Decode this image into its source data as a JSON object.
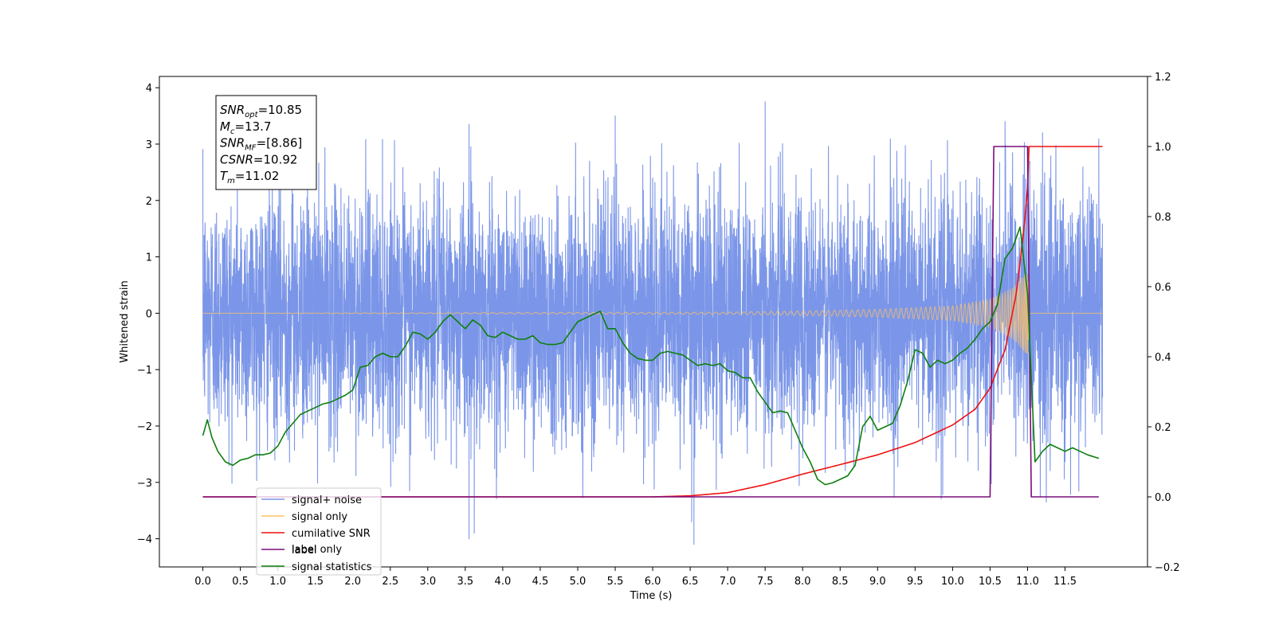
{
  "chart_data": {
    "type": "line",
    "title": "",
    "xlabel": "Time (s)",
    "ylabel": "Whitened strain",
    "y2label": "",
    "xlim": [
      -0.58,
      12.6
    ],
    "ylim": [
      -4.5,
      4.2
    ],
    "y2lim": [
      -0.2,
      1.2
    ],
    "xticks": [
      0.0,
      0.5,
      1.0,
      1.5,
      2.0,
      2.5,
      3.0,
      3.5,
      4.0,
      4.5,
      5.0,
      5.5,
      6.0,
      6.5,
      7.0,
      7.5,
      8.0,
      8.5,
      9.0,
      9.5,
      10.0,
      10.5,
      11.0,
      11.5
    ],
    "xtick_labels": [
      "0.0",
      "0.5",
      "1.0",
      "1.5",
      "2.0",
      "2.5",
      "3.0",
      "3.5",
      "4.0",
      "4.5",
      "5.0",
      "5.5",
      "6.0",
      "6.5",
      "7.0",
      "7.5",
      "8.0",
      "8.5",
      "9.0",
      "9.5",
      "10.0",
      "10.5",
      "11.0",
      "11.5"
    ],
    "yticks": [
      4,
      3,
      2,
      1,
      0,
      -1,
      -2,
      -3,
      -4
    ],
    "ytick_labels": [
      "4",
      "3",
      "2",
      "1",
      "0",
      "−1",
      "−2",
      "−3",
      "−4"
    ],
    "y2ticks": [
      1.2,
      1.0,
      0.8,
      0.6,
      0.4,
      0.2,
      0.0,
      -0.2
    ],
    "y2tick_labels": [
      "1.2",
      "1.0",
      "0.8",
      "0.6",
      "0.4",
      "0.2",
      "0.0",
      "−0.2"
    ],
    "grid": false,
    "legend_position": "lower-left",
    "annotation": {
      "lines": [
        {
          "base": "SNR",
          "sub": "opt",
          "rest": "=10.85"
        },
        {
          "base": "M",
          "sub": "c",
          "rest": "=13.7"
        },
        {
          "base": "SNR",
          "sub": "MF",
          "rest": "=[8.86]"
        },
        {
          "base": "CSNR",
          "sub": "",
          "rest": "=10.92"
        },
        {
          "base": "T",
          "sub": "m",
          "rest": "=11.02"
        }
      ]
    },
    "legend": [
      {
        "label": "signal+ noise",
        "color": "#7b96e8"
      },
      {
        "label": "signal only",
        "color": "#ffc266"
      },
      {
        "label": "cumilative SNR",
        "color": "#ee1111"
      },
      {
        "label": "label",
        "color": "#7a0d7a"
      },
      {
        "label": "signal statistics",
        "color": "#0e7f0e"
      }
    ],
    "legend_hidden_text": "label only",
    "series": [
      {
        "name": "signal+ noise",
        "axis": "left",
        "color": "#7b96e8",
        "description": "dense noise, std ~1.1, spikes to +3.8 and -4.1",
        "x_range": [
          0.0,
          12.0
        ],
        "notable_peaks": [
          [
            3.55,
            3.35
          ],
          [
            5.5,
            3.5
          ],
          [
            7.5,
            3.75
          ],
          [
            10.7,
            3.4
          ],
          [
            11.2,
            3.2
          ],
          [
            3.55,
            -4.0
          ],
          [
            3.62,
            -3.9
          ],
          [
            6.55,
            -4.1
          ],
          [
            6.52,
            -3.7
          ],
          [
            11.25,
            -3.35
          ]
        ]
      },
      {
        "name": "signal only",
        "axis": "left",
        "color": "#ffc266",
        "description": "chirp, amplitude grows toward merger at 11.02 s",
        "amplitude": [
          [
            0.0,
            0.0
          ],
          [
            7.0,
            0.02
          ],
          [
            8.0,
            0.04
          ],
          [
            9.0,
            0.07
          ],
          [
            10.0,
            0.13
          ],
          [
            10.5,
            0.25
          ],
          [
            10.8,
            0.45
          ],
          [
            11.0,
            0.75
          ],
          [
            11.03,
            0.0
          ],
          [
            12.0,
            0.0
          ]
        ]
      },
      {
        "name": "cumilative SNR",
        "axis": "right",
        "color": "#ee1111",
        "x": [
          0.0,
          6.0,
          6.5,
          7.0,
          7.5,
          8.0,
          8.5,
          9.0,
          9.5,
          10.0,
          10.3,
          10.5,
          10.7,
          10.85,
          10.95,
          11.0,
          11.02,
          12.0
        ],
        "y": [
          0.0,
          0.0,
          0.003,
          0.012,
          0.035,
          0.065,
          0.092,
          0.12,
          0.155,
          0.205,
          0.25,
          0.31,
          0.42,
          0.58,
          0.76,
          0.88,
          1.0,
          1.0
        ]
      },
      {
        "name": "label",
        "axis": "right",
        "color": "#7a0d7a",
        "x": [
          0.0,
          10.5,
          10.55,
          11.0,
          11.05,
          11.95
        ],
        "y": [
          0.0,
          0.0,
          1.0,
          1.0,
          0.0,
          0.0
        ]
      },
      {
        "name": "signal statistics",
        "axis": "right",
        "color": "#0e7f0e",
        "x": [
          0.0,
          0.06,
          0.12,
          0.2,
          0.3,
          0.4,
          0.5,
          0.6,
          0.7,
          0.8,
          0.9,
          1.0,
          1.1,
          1.2,
          1.3,
          1.4,
          1.5,
          1.6,
          1.7,
          1.8,
          1.9,
          2.0,
          2.1,
          2.2,
          2.3,
          2.4,
          2.5,
          2.6,
          2.7,
          2.8,
          2.9,
          3.0,
          3.1,
          3.2,
          3.3,
          3.4,
          3.5,
          3.6,
          3.7,
          3.8,
          3.9,
          4.0,
          4.1,
          4.2,
          4.3,
          4.4,
          4.5,
          4.6,
          4.7,
          4.8,
          4.9,
          5.0,
          5.1,
          5.2,
          5.3,
          5.4,
          5.5,
          5.6,
          5.7,
          5.8,
          5.9,
          6.0,
          6.1,
          6.2,
          6.3,
          6.4,
          6.5,
          6.6,
          6.7,
          6.8,
          6.9,
          7.0,
          7.1,
          7.2,
          7.3,
          7.4,
          7.5,
          7.6,
          7.7,
          7.8,
          7.9,
          8.0,
          8.1,
          8.2,
          8.3,
          8.4,
          8.5,
          8.6,
          8.7,
          8.8,
          8.9,
          9.0,
          9.1,
          9.2,
          9.3,
          9.4,
          9.5,
          9.6,
          9.7,
          9.8,
          9.9,
          10.0,
          10.1,
          10.2,
          10.3,
          10.4,
          10.5,
          10.6,
          10.7,
          10.8,
          10.9,
          11.0,
          11.1,
          11.2,
          11.3,
          11.4,
          11.5,
          11.6,
          11.7,
          11.8,
          11.95
        ],
        "y": [
          0.175,
          0.22,
          0.17,
          0.13,
          0.1,
          0.09,
          0.105,
          0.11,
          0.12,
          0.12,
          0.125,
          0.145,
          0.185,
          0.21,
          0.235,
          0.245,
          0.255,
          0.265,
          0.27,
          0.28,
          0.29,
          0.305,
          0.37,
          0.375,
          0.4,
          0.41,
          0.4,
          0.4,
          0.43,
          0.47,
          0.465,
          0.45,
          0.47,
          0.5,
          0.52,
          0.5,
          0.48,
          0.505,
          0.49,
          0.46,
          0.455,
          0.47,
          0.46,
          0.45,
          0.45,
          0.46,
          0.44,
          0.435,
          0.435,
          0.44,
          0.47,
          0.5,
          0.51,
          0.52,
          0.53,
          0.48,
          0.48,
          0.44,
          0.41,
          0.395,
          0.39,
          0.39,
          0.41,
          0.415,
          0.41,
          0.405,
          0.39,
          0.375,
          0.38,
          0.375,
          0.38,
          0.36,
          0.355,
          0.34,
          0.34,
          0.3,
          0.27,
          0.24,
          0.245,
          0.24,
          0.19,
          0.14,
          0.1,
          0.05,
          0.035,
          0.04,
          0.05,
          0.06,
          0.09,
          0.2,
          0.23,
          0.19,
          0.2,
          0.21,
          0.26,
          0.33,
          0.42,
          0.41,
          0.37,
          0.39,
          0.38,
          0.39,
          0.41,
          0.425,
          0.45,
          0.48,
          0.5,
          0.55,
          0.68,
          0.71,
          0.77,
          0.58,
          0.1,
          0.13,
          0.15,
          0.14,
          0.13,
          0.14,
          0.13,
          0.12,
          0.11
        ]
      }
    ]
  }
}
